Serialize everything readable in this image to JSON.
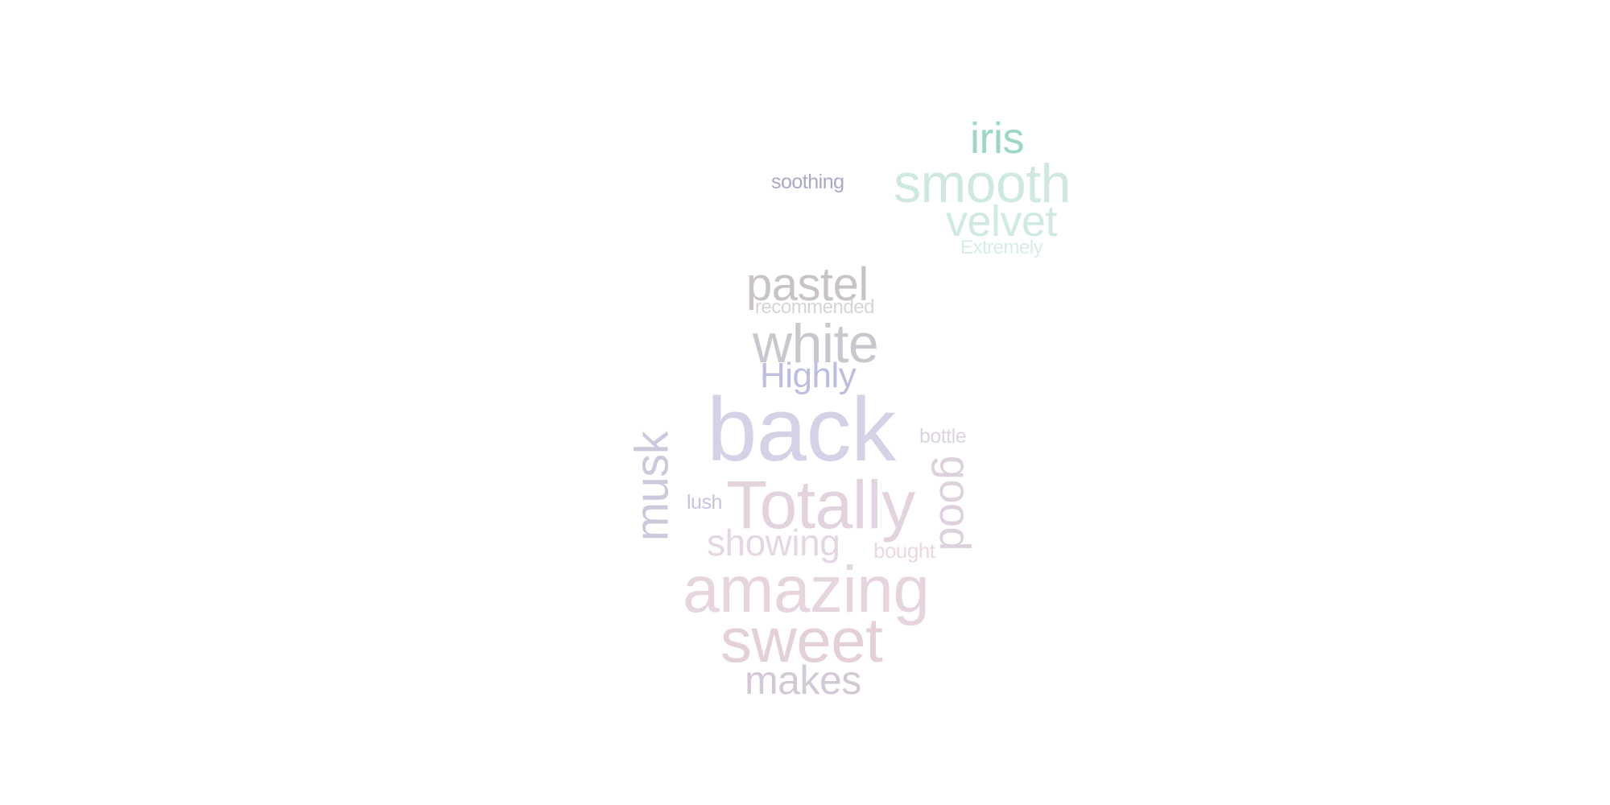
{
  "words": {
    "iris": {
      "text": "iris",
      "color": "#9bd8c2"
    },
    "soothing": {
      "text": "soothing",
      "color": "#a8a8c8"
    },
    "smooth": {
      "text": "smooth",
      "color": "#cfe9e1"
    },
    "velvet": {
      "text": "velvet",
      "color": "#cfe9e3"
    },
    "extremely": {
      "text": "Extremely",
      "color": "#d7ece8"
    },
    "pastel": {
      "text": "pastel",
      "color": "#c9c3c6"
    },
    "recommended": {
      "text": "recommended",
      "color": "#d8d4d6"
    },
    "white": {
      "text": "white",
      "color": "#cac6cd"
    },
    "highly": {
      "text": "Highly",
      "color": "#bdbde0"
    },
    "back": {
      "text": "back",
      "color": "#d4d2e6"
    },
    "bottle": {
      "text": "bottle",
      "color": "#dcd4e1"
    },
    "musk": {
      "text": "musk",
      "color": "#ccc9dd"
    },
    "totally": {
      "text": "Totally",
      "color": "#e2d3df"
    },
    "good": {
      "text": "good",
      "color": "#ddd1dd"
    },
    "lush": {
      "text": "lush",
      "color": "#c6c3e0"
    },
    "showing": {
      "text": "showing",
      "color": "#e4d6e2"
    },
    "bought": {
      "text": "bought",
      "color": "#ecd7e2"
    },
    "amazing": {
      "text": "amazing",
      "color": "#e6d4df"
    },
    "sweet": {
      "text": "sweet",
      "color": "#e4d0d9"
    },
    "makes": {
      "text": "makes",
      "color": "#d3c8d5"
    }
  }
}
